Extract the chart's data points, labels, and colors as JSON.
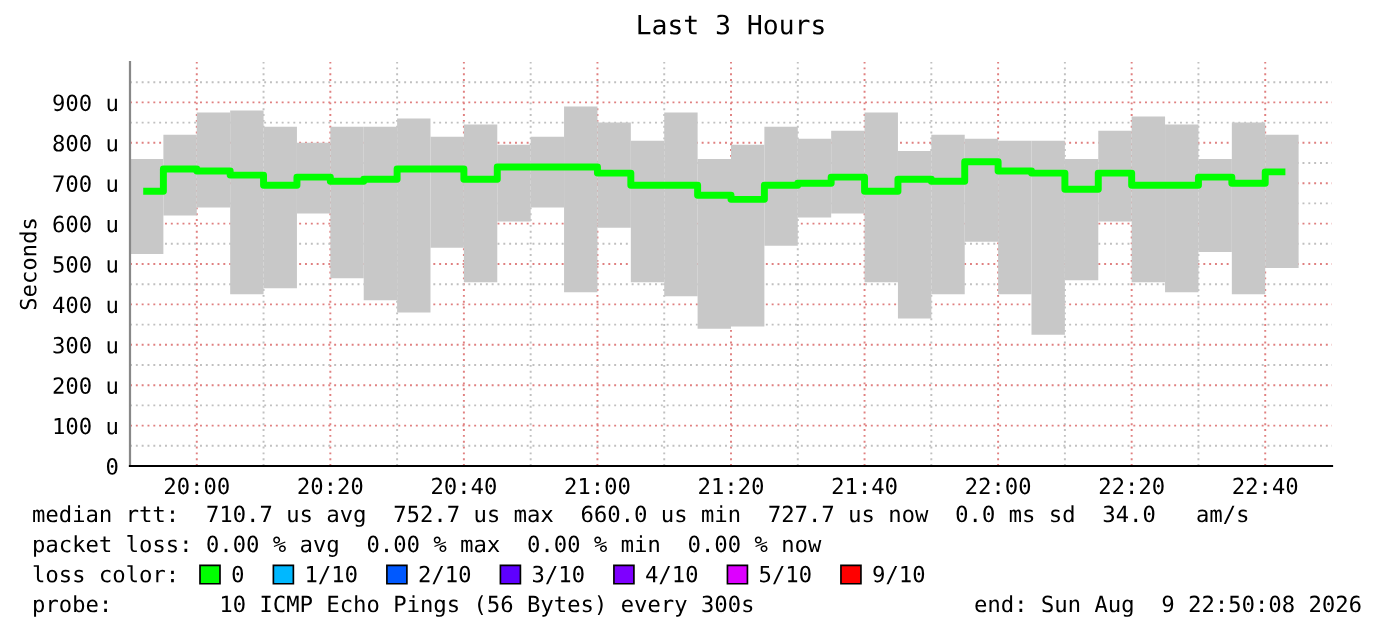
{
  "chart_data": {
    "type": "bar",
    "title": "Last 3 Hours",
    "ylabel": "Seconds",
    "x": [
      "2026-08-09T19:52:30",
      "2026-08-09T19:57:30",
      "2026-08-09T20:02:30",
      "2026-08-09T20:07:30",
      "2026-08-09T20:12:30",
      "2026-08-09T20:17:30",
      "2026-08-09T20:22:30",
      "2026-08-09T20:27:30",
      "2026-08-09T20:32:30",
      "2026-08-09T20:37:30",
      "2026-08-09T20:42:30",
      "2026-08-09T20:47:30",
      "2026-08-09T20:52:30",
      "2026-08-09T20:57:30",
      "2026-08-09T21:02:30",
      "2026-08-09T21:07:30",
      "2026-08-09T21:12:30",
      "2026-08-09T21:17:30",
      "2026-08-09T21:22:30",
      "2026-08-09T21:27:30",
      "2026-08-09T21:32:30",
      "2026-08-09T21:37:30",
      "2026-08-09T21:42:30",
      "2026-08-09T21:47:30",
      "2026-08-09T21:52:30",
      "2026-08-09T21:57:30",
      "2026-08-09T22:02:30",
      "2026-08-09T22:07:30",
      "2026-08-09T22:12:30",
      "2026-08-09T22:17:30",
      "2026-08-09T22:22:30",
      "2026-08-09T22:27:30",
      "2026-08-09T22:32:30",
      "2026-08-09T22:37:30",
      "2026-08-09T22:42:30"
    ],
    "series": [
      {
        "color": "#c8c8c8",
        "base": [
          525,
          620,
          640,
          425,
          440,
          625,
          465,
          410,
          380,
          540,
          455,
          605,
          640,
          430,
          590,
          455,
          420,
          340,
          345,
          545,
          615,
          625,
          455,
          365,
          425,
          555,
          425,
          325,
          460,
          605,
          455,
          430,
          530,
          425,
          490
        ],
        "values": [
          235,
          200,
          235,
          455,
          400,
          175,
          375,
          430,
          480,
          275,
          390,
          190,
          175,
          460,
          260,
          350,
          455,
          420,
          450,
          295,
          195,
          205,
          420,
          415,
          395,
          255,
          380,
          480,
          300,
          225,
          410,
          415,
          230,
          425,
          330
        ]
      },
      {
        "type": "step",
        "name": "0",
        "color": "#00ff00",
        "values": [
          680,
          735,
          730,
          720,
          695,
          715,
          705,
          710,
          735,
          735,
          710,
          740,
          740,
          740,
          725,
          695,
          695,
          670,
          660,
          695,
          700,
          715,
          680,
          710,
          705,
          753,
          730,
          725,
          685,
          725,
          695,
          695,
          715,
          700,
          728
        ]
      },
      {
        "type": "step",
        "name": "1/10",
        "color": "#00b8ff",
        "values": [
          null,
          null,
          null,
          null,
          null,
          null,
          null,
          null,
          null,
          null,
          null,
          null,
          null,
          null,
          null,
          null,
          null,
          null,
          null,
          null,
          null,
          null,
          null,
          null,
          null,
          null,
          null,
          null,
          null,
          null,
          null,
          null,
          null,
          null,
          null
        ]
      },
      {
        "type": "step",
        "name": "2/10",
        "color": "#0059ff",
        "values": [
          null,
          null,
          null,
          null,
          null,
          null,
          null,
          null,
          null,
          null,
          null,
          null,
          null,
          null,
          null,
          null,
          null,
          null,
          null,
          null,
          null,
          null,
          null,
          null,
          null,
          null,
          null,
          null,
          null,
          null,
          null,
          null,
          null,
          null,
          null
        ]
      },
      {
        "type": "step",
        "name": "3/10",
        "color": "#5e00ff",
        "values": [
          null,
          null,
          null,
          null,
          null,
          null,
          null,
          null,
          null,
          null,
          null,
          null,
          null,
          null,
          null,
          null,
          null,
          null,
          null,
          null,
          null,
          null,
          null,
          null,
          null,
          null,
          null,
          null,
          null,
          null,
          null,
          null,
          null,
          null,
          null
        ]
      },
      {
        "type": "step",
        "name": "4/10",
        "color": "#7e00ff",
        "values": [
          null,
          null,
          null,
          null,
          null,
          null,
          null,
          null,
          null,
          null,
          null,
          null,
          null,
          null,
          null,
          null,
          null,
          null,
          null,
          null,
          null,
          null,
          null,
          null,
          null,
          null,
          null,
          null,
          null,
          null,
          null,
          null,
          null,
          null,
          null
        ]
      },
      {
        "type": "step",
        "name": "5/10",
        "color": "#dd00ff",
        "values": [
          null,
          null,
          null,
          null,
          null,
          null,
          null,
          null,
          null,
          null,
          null,
          null,
          null,
          null,
          null,
          null,
          null,
          null,
          null,
          null,
          null,
          null,
          null,
          null,
          null,
          null,
          null,
          null,
          null,
          null,
          null,
          null,
          null,
          null,
          null
        ]
      },
      {
        "type": "step",
        "name": "9/10",
        "color": "#ff0000",
        "values": [
          null,
          null,
          null,
          null,
          null,
          null,
          null,
          null,
          null,
          null,
          null,
          null,
          null,
          null,
          null,
          null,
          null,
          null,
          null,
          null,
          null,
          null,
          null,
          null,
          null,
          null,
          null,
          null,
          null,
          null,
          null,
          null,
          null,
          null,
          null
        ]
      }
    ],
    "xlim": [
      "2026-08-09T19:50",
      "2026-08-09T22:50"
    ],
    "xticks": [
      {
        "value": "2026-08-09T19:50",
        "label": null
      },
      {
        "value": "2026-08-09T20:00",
        "label": "20:00"
      },
      {
        "value": "2026-08-09T20:10",
        "label": null
      },
      {
        "value": "2026-08-09T20:20",
        "label": "20:20"
      },
      {
        "value": "2026-08-09T20:30",
        "label": null
      },
      {
        "value": "2026-08-09T20:40",
        "label": "20:40"
      },
      {
        "value": "2026-08-09T20:50",
        "label": null
      },
      {
        "value": "2026-08-09T21:00",
        "label": "21:00"
      },
      {
        "value": "2026-08-09T21:10",
        "label": null
      },
      {
        "value": "2026-08-09T21:20",
        "label": "21:20"
      },
      {
        "value": "2026-08-09T21:30",
        "label": null
      },
      {
        "value": "2026-08-09T21:40",
        "label": "21:40"
      },
      {
        "value": "2026-08-09T21:50",
        "label": null
      },
      {
        "value": "2026-08-09T22:00",
        "label": "22:00"
      },
      {
        "value": "2026-08-09T22:10",
        "label": null
      },
      {
        "value": "2026-08-09T22:20",
        "label": "22:20"
      },
      {
        "value": "2026-08-09T22:30",
        "label": null
      },
      {
        "value": "2026-08-09T22:40",
        "label": "22:40"
      }
    ],
    "ylim": [
      0,
      1000
    ],
    "yticks": [
      0,
      {
        "value": 50,
        "label": null
      },
      {
        "value": 100,
        "label": "100 u"
      },
      {
        "value": 150,
        "label": null
      },
      {
        "value": 200,
        "label": "200 u"
      },
      {
        "value": 250,
        "label": null
      },
      {
        "value": 300,
        "label": "300 u"
      },
      {
        "value": 350,
        "label": null
      },
      {
        "value": 400,
        "label": "400 u"
      },
      {
        "value": 450,
        "label": null
      },
      {
        "value": 500,
        "label": "500 u"
      },
      {
        "value": 550,
        "label": null
      },
      {
        "value": 600,
        "label": "600 u"
      },
      {
        "value": 650,
        "label": null
      },
      {
        "value": 700,
        "label": "700 u"
      },
      {
        "value": 750,
        "label": null
      },
      {
        "value": 800,
        "label": "800 u"
      },
      {
        "value": 850,
        "label": null
      },
      {
        "value": 900,
        "label": "900 u"
      },
      {
        "value": 950,
        "label": null
      }
    ],
    "grid": true,
    "legend": "bottom",
    "legend_title": "loss color:",
    "annotations": [
      "median rtt:  710.7 us avg  752.7 us max  660.0 us min  727.7 us now  0.0 ms sd  34.0   am/s",
      "packet loss: 0.00 % avg  0.00 % max  0.00 % min  0.00 % now",
      "probe:        10 ICMP Echo Pings (56 Bytes) every 300s",
      "end: Sun Aug  9 22:50:08 2026"
    ]
  }
}
